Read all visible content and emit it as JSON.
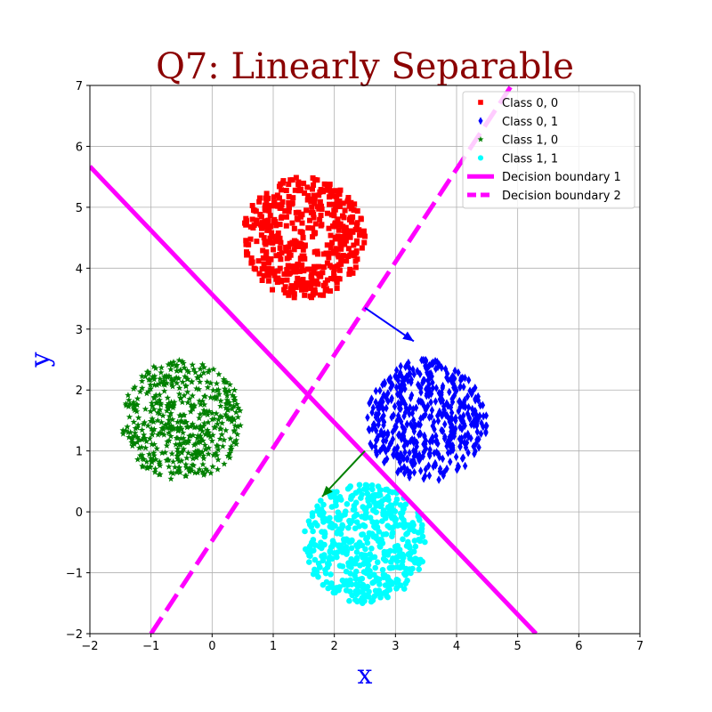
{
  "chart_data": {
    "type": "scatter",
    "title": "Q7: Linearly Separable",
    "xlabel": "x",
    "ylabel": "y",
    "xlim": [
      -2,
      7
    ],
    "ylim": [
      -2,
      7
    ],
    "xticks": [
      -2,
      -1,
      0,
      1,
      2,
      3,
      4,
      5,
      6,
      7
    ],
    "yticks": [
      -2,
      -1,
      0,
      1,
      2,
      3,
      4,
      5,
      6,
      7
    ],
    "grid": true,
    "legend_position": "top-right",
    "colors": {
      "title": "#8b0000",
      "axis_label": "#0000ff",
      "boundary": "#ff00ff"
    },
    "series": [
      {
        "name": "Class 0, 0",
        "color": "#ff0000",
        "marker": "square",
        "center": [
          1.5,
          4.5
        ],
        "radius": 1.0,
        "count": 500
      },
      {
        "name": "Class 0, 1",
        "color": "#0000ff",
        "marker": "diamond",
        "center": [
          3.5,
          1.5
        ],
        "radius": 1.0,
        "count": 500
      },
      {
        "name": "Class 1, 0",
        "color": "#008000",
        "marker": "star",
        "center": [
          -0.5,
          1.5
        ],
        "radius": 1.0,
        "count": 500
      },
      {
        "name": "Class 1, 1",
        "color": "#00ffff",
        "marker": "circle",
        "center": [
          2.5,
          -0.5
        ],
        "radius": 1.0,
        "count": 500
      }
    ],
    "lines": [
      {
        "name": "Decision boundary 1",
        "color": "#ff00ff",
        "style": "solid",
        "points": [
          [
            -2,
            5.67
          ],
          [
            5.3,
            -2
          ]
        ]
      },
      {
        "name": "Decision boundary 2",
        "color": "#ff00ff",
        "style": "dashed",
        "points": [
          [
            -1,
            -2
          ],
          [
            4.9,
            7
          ]
        ]
      }
    ],
    "arrows": [
      {
        "color": "#0000ff",
        "from": [
          2.5,
          3.35
        ],
        "to": [
          3.3,
          2.8
        ]
      },
      {
        "color": "#008000",
        "from": [
          2.5,
          1.0
        ],
        "to": [
          1.8,
          0.25
        ]
      }
    ]
  }
}
